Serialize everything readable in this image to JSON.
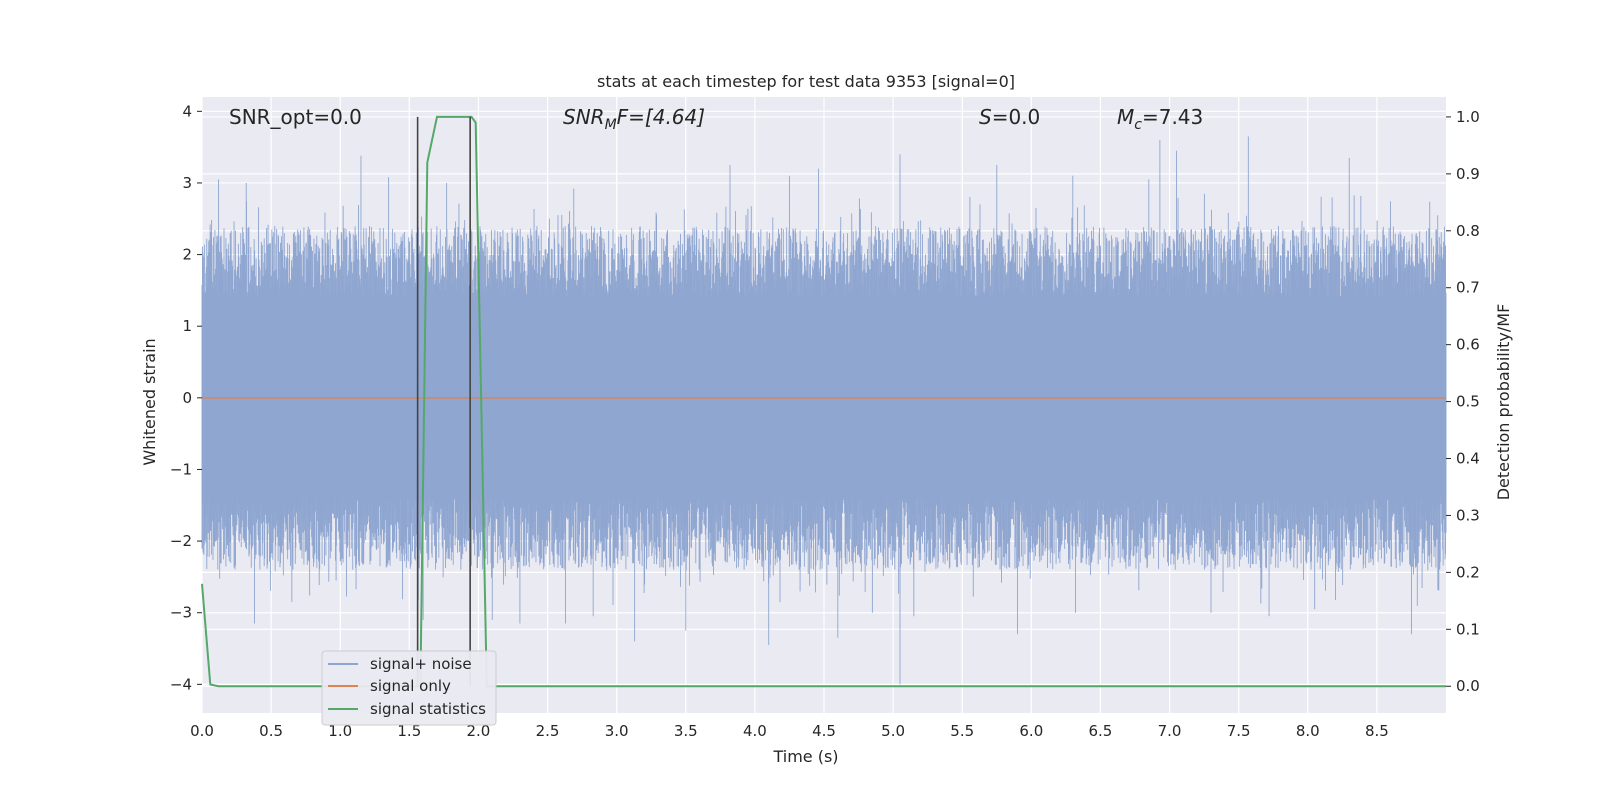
{
  "chart_data": {
    "type": "line",
    "title": "stats at each timestep for test data 9353 [signal=0]",
    "xlabel": "Time (s)",
    "ylabel": "Whitened strain",
    "ylabel_right": "Detection probability/MF",
    "xlim": [
      0.0,
      9.0
    ],
    "ylim": [
      -4.4,
      4.2
    ],
    "ylim_right": [
      -0.047,
      1.035
    ],
    "x_ticks": [
      "0.0",
      "0.5",
      "1.0",
      "1.5",
      "2.0",
      "2.5",
      "3.0",
      "3.5",
      "4.0",
      "4.5",
      "5.0",
      "5.5",
      "6.0",
      "6.5",
      "7.0",
      "7.5",
      "8.0",
      "8.5"
    ],
    "y_ticks": [
      "4",
      "3",
      "2",
      "1",
      "0",
      "−1",
      "−2",
      "−3",
      "−4"
    ],
    "y_ticks_right": [
      "1.0",
      "0.9",
      "0.8",
      "0.7",
      "0.6",
      "0.5",
      "0.4",
      "0.3",
      "0.2",
      "0.1",
      "0.0"
    ],
    "grid": true,
    "legend_position": "lower-left",
    "annotations": {
      "snr_opt": "SNR_opt=0.0",
      "snr_mf_prefix": "SNR",
      "snr_mf_sub": "M",
      "snr_mf_suffix": "F=[4.64]",
      "s_italic": "S",
      "s_value": "=0.0",
      "mc_italic": "M",
      "mc_sub": "c",
      "mc_value": "=7.43"
    },
    "series": [
      {
        "name": "signal+ noise",
        "color": "#8fa6d0",
        "description_values": "noise envelope",
        "envelope_typical": [
          -2.4,
          2.4
        ],
        "peaks": [
          [
            0.12,
            3.05
          ],
          [
            0.32,
            3.0
          ],
          [
            0.38,
            -3.15
          ],
          [
            0.65,
            -2.85
          ],
          [
            0.97,
            -2.55
          ],
          [
            1.15,
            3.38
          ],
          [
            1.35,
            3.08
          ],
          [
            1.6,
            -3.1
          ],
          [
            1.77,
            3.0
          ],
          [
            2.1,
            -3.1
          ],
          [
            2.3,
            -3.15
          ],
          [
            2.63,
            -3.15
          ],
          [
            2.83,
            -3.05
          ],
          [
            3.13,
            -3.4
          ],
          [
            3.5,
            -3.25
          ],
          [
            3.82,
            3.25
          ],
          [
            4.1,
            -3.45
          ],
          [
            4.25,
            3.1
          ],
          [
            4.46,
            3.2
          ],
          [
            4.6,
            -3.35
          ],
          [
            4.85,
            -3.0
          ],
          [
            5.05,
            3.4
          ],
          [
            5.05,
            -4.0
          ],
          [
            5.15,
            -3.05
          ],
          [
            5.75,
            3.25
          ],
          [
            5.9,
            -3.3
          ],
          [
            6.3,
            3.1
          ],
          [
            6.32,
            -3.0
          ],
          [
            6.85,
            3.05
          ],
          [
            6.93,
            3.6
          ],
          [
            7.05,
            3.45
          ],
          [
            7.3,
            -3.0
          ],
          [
            7.57,
            3.65
          ],
          [
            7.72,
            -3.05
          ],
          [
            8.05,
            -2.95
          ],
          [
            8.3,
            3.35
          ],
          [
            8.75,
            -3.3
          ],
          [
            8.94,
            2.55
          ]
        ]
      },
      {
        "name": "signal only",
        "color": "#dd8452",
        "x": [
          0.0,
          9.0
        ],
        "y": [
          0.0,
          0.0
        ]
      },
      {
        "name": "signal statistics",
        "color": "#55a868",
        "axis": "right",
        "x": [
          0.0,
          0.06,
          0.12,
          1.55,
          1.58,
          1.63,
          1.7,
          1.76,
          1.8,
          1.95,
          1.98,
          2.02,
          2.06,
          2.12,
          9.0
        ],
        "y": [
          0.18,
          0.003,
          0.0,
          0.0,
          0.0,
          0.92,
          1.0,
          1.0,
          1.0,
          1.0,
          0.99,
          0.5,
          0.0,
          0.0,
          0.0
        ]
      }
    ],
    "vertical_markers": {
      "color": "#444444",
      "x": [
        1.56,
        1.94
      ],
      "y": [
        0.0,
        1.0
      ]
    }
  }
}
